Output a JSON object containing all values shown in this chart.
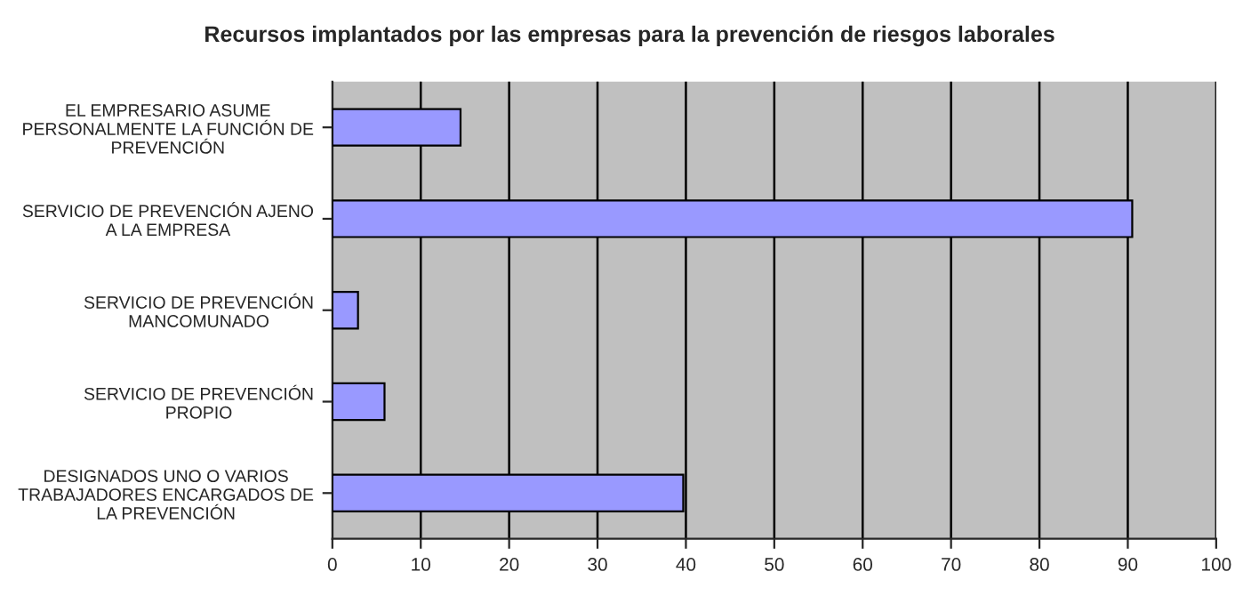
{
  "chart_data": {
    "type": "bar",
    "orientation": "horizontal",
    "title": "Recursos implantados por las empresas para la prevención de riesgos laborales",
    "categories": [
      "EL EMPRESARIO ASUME\nPERSONALMENTE LA FUNCIÓN DE\nPREVENCIÓN",
      "SERVICIO DE PREVENCIÓN AJENO\nA LA EMPRESA",
      "SERVICIO DE PREVENCIÓN\nMANCOMUNADO",
      "SERVICIO DE PREVENCIÓN\nPROPIO",
      "DESIGNADOS UNO O VARIOS\nTRABAJADORES ENCARGADOS DE\nLA PREVENCIÓN"
    ],
    "values": [
      14.5,
      90.5,
      2.9,
      5.9,
      39.7
    ],
    "color": "#9999ff",
    "xlim": [
      0,
      100
    ],
    "xticks": [
      0,
      10,
      20,
      30,
      40,
      50,
      60,
      70,
      80,
      90,
      100
    ],
    "grid": "x",
    "legend": false
  }
}
